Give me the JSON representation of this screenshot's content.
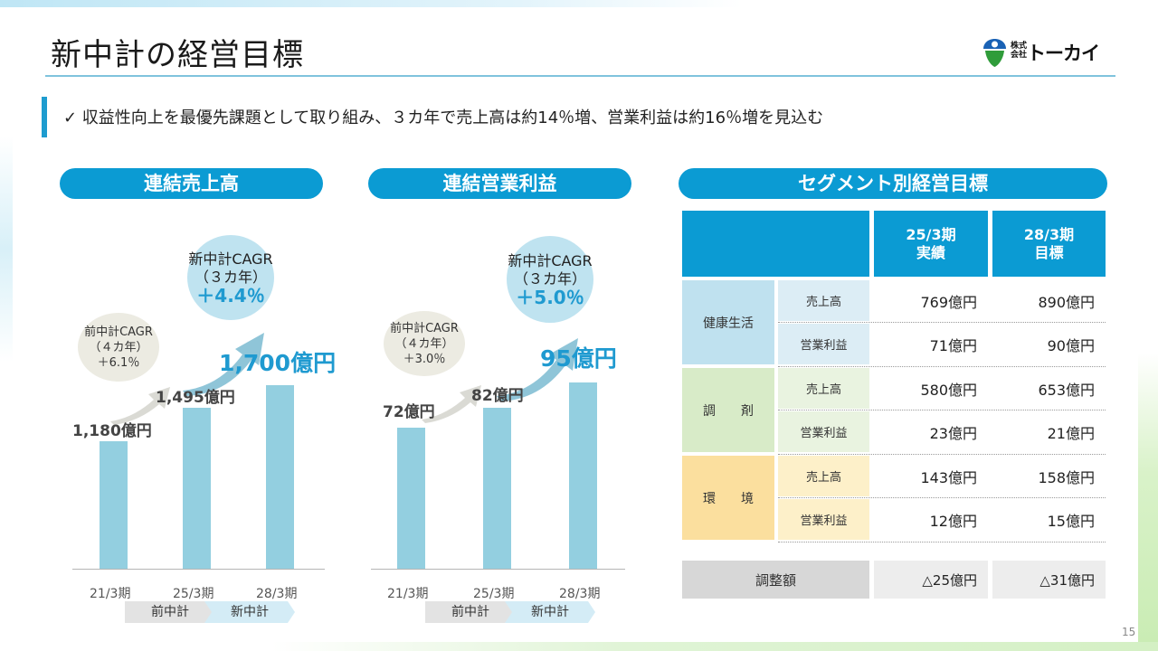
{
  "title": "新中計の経営目標",
  "logo": {
    "small1": "株式",
    "small2": "会社",
    "name": "トーカイ"
  },
  "bullet": "✓ 収益性向上を最優先課題として取り組み、３カ年で売上高は約14％増、営業利益は約16％増を見込む",
  "sales": {
    "header": "連結売上高",
    "prev_cagr": {
      "line1": "前中計CAGR",
      "line2": "（４カ年）",
      "line3": "＋6.1％"
    },
    "new_cagr": {
      "line1": "新中計CAGR",
      "line2": "（３カ年）",
      "line3": "＋4.4％"
    },
    "labels": [
      "1,180億円",
      "1,495億円",
      "1,700億円"
    ],
    "ticks": [
      "21/3期",
      "25/3期",
      "28/3期"
    ]
  },
  "profit": {
    "header": "連結営業利益",
    "prev_cagr": {
      "line1": "前中計CAGR",
      "line2": "（４カ年）",
      "line3": "＋3.0％"
    },
    "new_cagr": {
      "line1": "新中計CAGR",
      "line2": "（３カ年）",
      "line3": "＋5.0％"
    },
    "labels": [
      "72億円",
      "82億円",
      "95億円"
    ],
    "ticks": [
      "21/3期",
      "25/3期",
      "28/3期"
    ]
  },
  "phases": {
    "prev": "前中計",
    "new": "新中計"
  },
  "chart_data": [
    {
      "type": "bar",
      "categories": [
        "21/3期",
        "25/3期",
        "28/3期"
      ],
      "values": [
        1180,
        1495,
        1700
      ],
      "title": "連結売上高",
      "ylim": [
        0,
        2400
      ]
    },
    {
      "type": "bar",
      "categories": [
        "21/3期",
        "25/3期",
        "28/3期"
      ],
      "values": [
        72,
        82,
        95
      ],
      "title": "連結営業利益",
      "ylim": [
        0,
        132
      ]
    }
  ],
  "segment": {
    "header": "セグメント別経営目標",
    "col1": {
      "line1": "25/3期",
      "line2": "実績"
    },
    "col2": {
      "line1": "28/3期",
      "line2": "目標"
    },
    "rows": [
      {
        "name": "健康生活",
        "metric1": "売上高",
        "a1": "769億円",
        "b1": "890億円",
        "metric2": "営業利益",
        "a2": "71億円",
        "b2": "90億円"
      },
      {
        "name": "調　　剤",
        "metric1": "売上高",
        "a1": "580億円",
        "b1": "653億円",
        "metric2": "営業利益",
        "a2": "23億円",
        "b2": "21億円"
      },
      {
        "name": "環　　境",
        "metric1": "売上高",
        "a1": "143億円",
        "b1": "158億円",
        "metric2": "営業利益",
        "a2": "12億円",
        "b2": "15億円"
      }
    ],
    "adjust": {
      "label": "調整額",
      "a": "△25億円",
      "b": "△31億円"
    }
  },
  "page_number": "15",
  "colors": {
    "accent": "#0b9bd3",
    "bar": "#93cfe0",
    "health": "#bfe1ef",
    "dispensing": "#d8ebc8",
    "env": "#fbdf9e"
  }
}
